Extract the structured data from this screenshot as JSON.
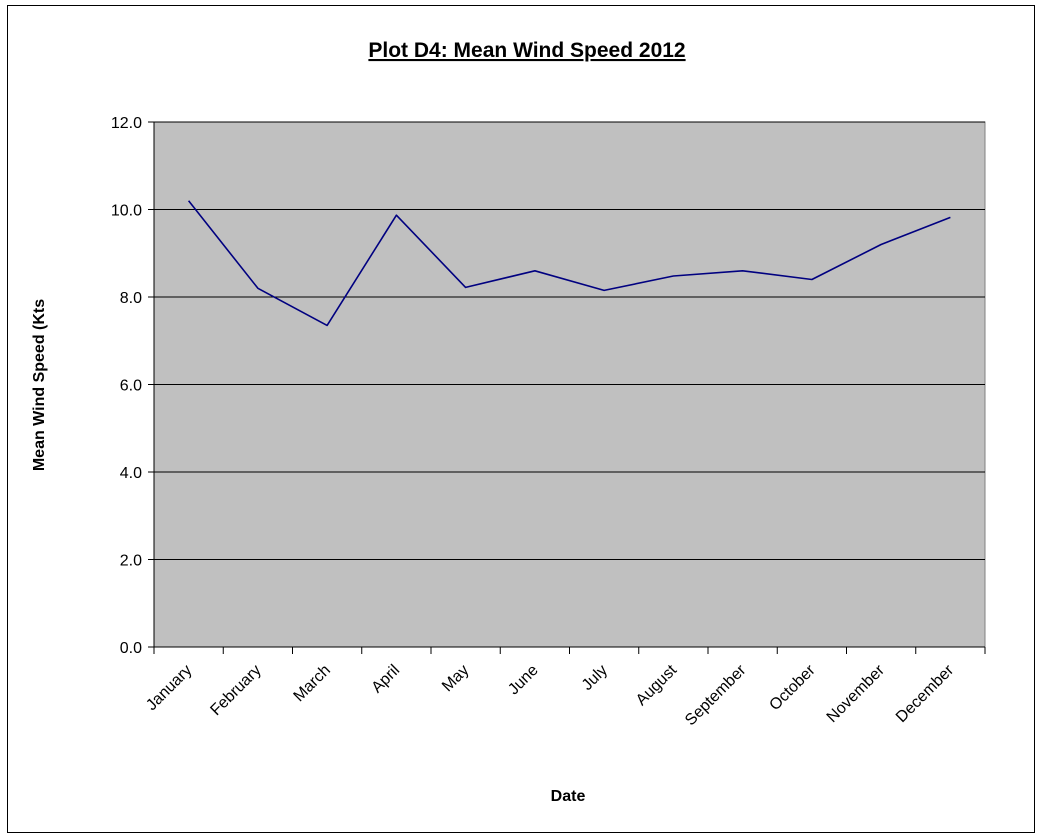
{
  "chart_data": {
    "type": "line",
    "title": "Plot D4: Mean Wind Speed 2012",
    "xlabel": "Date",
    "ylabel": "Mean Wind Speed (Kts",
    "categories": [
      "January",
      "February",
      "March",
      "April",
      "May",
      "June",
      "July",
      "August",
      "September",
      "October",
      "November",
      "December"
    ],
    "series": [
      {
        "values": [
          10.2,
          8.2,
          7.35,
          9.87,
          8.22,
          8.6,
          8.15,
          8.48,
          8.6,
          8.4,
          9.2,
          9.82
        ]
      }
    ],
    "ylim": [
      0,
      12
    ],
    "yticks": [
      0,
      2,
      4,
      6,
      8,
      10,
      12
    ],
    "ytick_labels": [
      "0.0",
      "2.0",
      "4.0",
      "6.0",
      "8.0",
      "10.0",
      "12.0"
    ],
    "grid": true,
    "plot_background": "#c0c0c0",
    "line_color": "#000080"
  }
}
